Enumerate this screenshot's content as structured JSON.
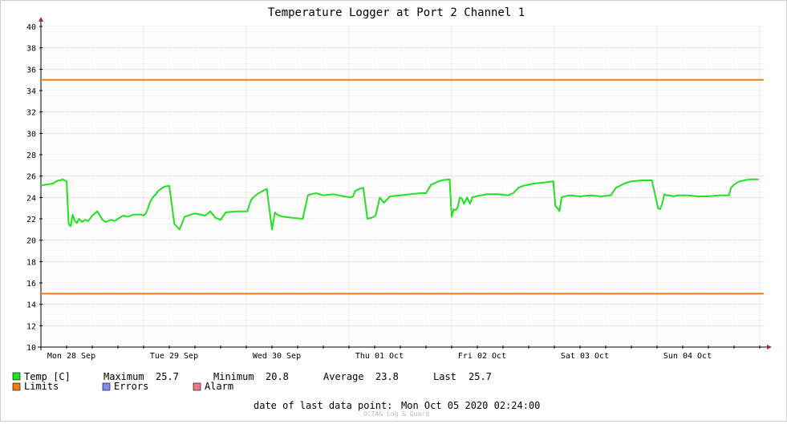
{
  "chart_data": {
    "type": "line",
    "title": "Temperature Logger at Port 2 Channel 1",
    "ylim": [
      10,
      40
    ],
    "y_ticks": [
      "10",
      "12",
      "14",
      "16",
      "18",
      "20",
      "22",
      "24",
      "26",
      "28",
      "30",
      "32",
      "34",
      "36",
      "38",
      "40"
    ],
    "x_ticks": [
      "Mon 28 Sep",
      "Tue 29 Sep",
      "Wed 30 Sep",
      "Thu 01 Oct",
      "Fri 02 Oct",
      "Sat 03 Oct",
      "Sun 04 Oct"
    ],
    "grid": true,
    "limits": {
      "upper": 35,
      "lower": 15
    },
    "series": [
      {
        "name": "Temp [C]",
        "color": "#22e022",
        "x": [
          0,
          0.05,
          0.12,
          0.13,
          0.15,
          0.17,
          0.19,
          0.21,
          0.23,
          0.25,
          0.27,
          0.29,
          0.31,
          0.33,
          0.35,
          0.37,
          0.4,
          0.43,
          0.46,
          0.5,
          0.55,
          0.6,
          0.63,
          0.68,
          0.72,
          0.75,
          0.8,
          0.85,
          0.9,
          0.98,
          1.0,
          1.02,
          1.04,
          1.06,
          1.09,
          1.12,
          1.14,
          1.17,
          1.2,
          1.25,
          1.3,
          1.35,
          1.4,
          1.5,
          1.6,
          1.65,
          1.7,
          1.75,
          1.8,
          1.9,
          1.99,
          2.01,
          2.03,
          2.05,
          2.08,
          2.12,
          2.16,
          2.2,
          2.25,
          2.28,
          2.3,
          2.35,
          2.45,
          2.55,
          2.6,
          2.63,
          2.68,
          2.75,
          2.85,
          2.95,
          3.02,
          3.04,
          3.06,
          3.08,
          3.1,
          3.14,
          3.18,
          3.22,
          3.26,
          3.3,
          3.34,
          3.4,
          3.5,
          3.6,
          3.7,
          3.75,
          3.8,
          3.85,
          3.9,
          3.98,
          4.0,
          4.02,
          4.04,
          4.06,
          4.08,
          4.1,
          4.12,
          4.15,
          4.18,
          4.2,
          4.24,
          4.28,
          4.35,
          4.45,
          4.55,
          4.6,
          4.65,
          4.7,
          4.8,
          4.9,
          4.99,
          5.01,
          5.03,
          5.05,
          5.07,
          5.1,
          5.15,
          5.25,
          5.35,
          5.45,
          5.55,
          5.6,
          5.64,
          5.68,
          5.75,
          5.85,
          5.95,
          6.01,
          6.03,
          6.05,
          6.07,
          6.09,
          6.12,
          6.16,
          6.2,
          6.3,
          6.4,
          6.5,
          6.6,
          6.7,
          6.72,
          6.75,
          6.8,
          6.9,
          6.99
        ],
        "values": [
          25.1,
          25.2,
          25.3,
          25.4,
          25.5,
          25.6,
          25.6,
          25.7,
          25.6,
          25.5,
          21.5,
          21.3,
          22.4,
          21.8,
          21.6,
          22.0,
          21.7,
          21.9,
          21.8,
          22.3,
          22.7,
          21.9,
          21.7,
          21.9,
          21.8,
          22.0,
          22.3,
          22.2,
          22.4,
          22.4,
          22.3,
          22.5,
          22.9,
          23.5,
          24.0,
          24.3,
          24.6,
          24.8,
          25.0,
          25.1,
          21.5,
          21.0,
          22.2,
          22.5,
          22.3,
          22.7,
          22.1,
          21.9,
          22.6,
          22.7,
          22.7,
          22.7,
          23.3,
          23.8,
          24.1,
          24.4,
          24.6,
          24.8,
          21.0,
          22.6,
          22.4,
          22.2,
          22.1,
          22.0,
          24.2,
          24.3,
          24.4,
          24.2,
          24.3,
          24.1,
          24.0,
          24.1,
          24.6,
          24.7,
          24.8,
          24.9,
          22.0,
          22.1,
          22.3,
          24.0,
          23.5,
          24.1,
          24.2,
          24.3,
          24.4,
          24.4,
          25.2,
          25.4,
          25.6,
          25.7,
          22.2,
          22.9,
          22.8,
          23.1,
          24.0,
          23.9,
          23.4,
          24.0,
          23.4,
          24.0,
          24.1,
          24.2,
          24.3,
          24.3,
          24.2,
          24.4,
          24.9,
          25.1,
          25.3,
          25.4,
          25.5,
          23.2,
          23.0,
          22.7,
          24.0,
          24.1,
          24.2,
          24.1,
          24.2,
          24.1,
          24.2,
          24.9,
          25.1,
          25.3,
          25.5,
          25.6,
          25.6,
          23.0,
          22.9,
          23.4,
          24.3,
          24.2,
          24.2,
          24.1,
          24.2,
          24.2,
          24.1,
          24.1,
          24.2,
          24.2,
          24.9,
          25.2,
          25.5,
          25.7,
          25.7
        ]
      }
    ]
  },
  "legend": {
    "temp_label": "Temp [C]",
    "max_label": "Maximum",
    "max_value": "25.7",
    "min_label": "Minimum",
    "min_value": "20.8",
    "avg_label": "Average",
    "avg_value": "23.8",
    "last_label": "Last",
    "last_value": "25.7",
    "limits_label": "Limits",
    "errors_label": "Errors",
    "alarm_label": "Alarm",
    "temp_color": "#22e022",
    "limits_color": "#f07a12",
    "errors_color": "#7f8cf0",
    "alarm_color": "#f07880"
  },
  "footer": {
    "date_label": "date of last data point:",
    "date_value": "Mon Oct 05 2020 02:24:00"
  },
  "watermark": "OCTA& Log & Guard"
}
